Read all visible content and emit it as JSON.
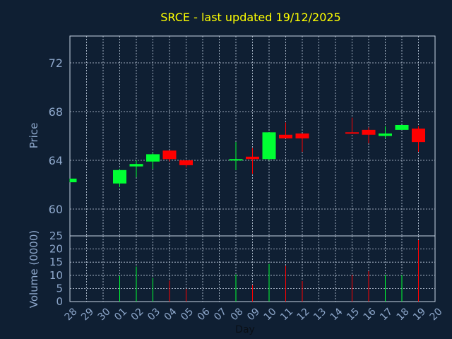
{
  "chart_data": [
    {
      "type": "candlestick",
      "title": "SRCE - last updated 19/12/2025",
      "ylabel": "Price",
      "xlabel": "Day",
      "ylim": [
        57.8,
        74.2
      ],
      "yticks": [
        60,
        64,
        68,
        72
      ],
      "grid": true,
      "categories": [
        "28",
        "29",
        "30",
        "01",
        "02",
        "03",
        "04",
        "05",
        "06",
        "07",
        "08",
        "09",
        "10",
        "11",
        "12",
        "13",
        "14",
        "15",
        "16",
        "17",
        "18",
        "19",
        "20"
      ],
      "candles": [
        {
          "x": "28",
          "open": 62.2,
          "close": 62.5,
          "high": 62.5,
          "low": 62.2
        },
        {
          "x": "01",
          "open": 62.1,
          "close": 63.2,
          "high": 63.3,
          "low": 61.8
        },
        {
          "x": "02",
          "open": 63.5,
          "close": 63.7,
          "high": 64.0,
          "low": 62.6
        },
        {
          "x": "03",
          "open": 63.9,
          "close": 64.5,
          "high": 64.6,
          "low": 63.3
        },
        {
          "x": "04",
          "open": 64.8,
          "close": 64.1,
          "high": 64.8,
          "low": 63.9
        },
        {
          "x": "05",
          "open": 64.0,
          "close": 63.6,
          "high": 64.0,
          "low": 63.4
        },
        {
          "x": "08",
          "open": 64.0,
          "close": 64.1,
          "high": 65.5,
          "low": 63.2
        },
        {
          "x": "09",
          "open": 64.3,
          "close": 64.1,
          "high": 65.0,
          "low": 62.9
        },
        {
          "x": "10",
          "open": 64.1,
          "close": 66.3,
          "high": 66.3,
          "low": 64.0
        },
        {
          "x": "11",
          "open": 66.1,
          "close": 65.8,
          "high": 67.1,
          "low": 65.8
        },
        {
          "x": "12",
          "open": 66.2,
          "close": 65.8,
          "high": 66.2,
          "low": 64.7
        },
        {
          "x": "15",
          "open": 66.3,
          "close": 66.2,
          "high": 67.5,
          "low": 66.2
        },
        {
          "x": "16",
          "open": 66.5,
          "close": 66.1,
          "high": 66.7,
          "low": 65.4
        },
        {
          "x": "17",
          "open": 66.0,
          "close": 66.2,
          "high": 66.8,
          "low": 65.8
        },
        {
          "x": "18",
          "open": 66.5,
          "close": 66.9,
          "high": 66.9,
          "low": 66.5
        },
        {
          "x": "19",
          "open": 66.6,
          "close": 65.5,
          "high": 66.8,
          "low": 64.7
        }
      ],
      "colors": {
        "up": "#00ff33",
        "down": "#ff0000",
        "title": "#ffff00",
        "axis": "#8ea8cc",
        "grid": "#c8d4e4",
        "plot_bg": "#0f1f33"
      }
    },
    {
      "type": "bar",
      "ylabel": "Volume (0000)",
      "xlabel": "Day",
      "ylim": [
        0,
        25
      ],
      "yticks": [
        0,
        5,
        10,
        15,
        20,
        25
      ],
      "categories": [
        "28",
        "29",
        "30",
        "01",
        "02",
        "03",
        "04",
        "05",
        "06",
        "07",
        "08",
        "09",
        "10",
        "11",
        "12",
        "13",
        "14",
        "15",
        "16",
        "17",
        "18",
        "19",
        "20"
      ],
      "values": [
        0,
        0,
        0,
        9.8,
        13.3,
        9.0,
        8.0,
        4.8,
        0,
        0,
        10.3,
        6.3,
        14.3,
        13.6,
        7.8,
        0,
        0,
        10.2,
        11.6,
        10.2,
        10.1,
        23.4,
        0
      ],
      "direction": [
        "",
        "",
        "",
        "up",
        "up",
        "up",
        "down",
        "down",
        "",
        "",
        "up",
        "down",
        "up",
        "down",
        "down",
        "",
        "",
        "down",
        "down",
        "up",
        "up",
        "down",
        ""
      ]
    }
  ]
}
